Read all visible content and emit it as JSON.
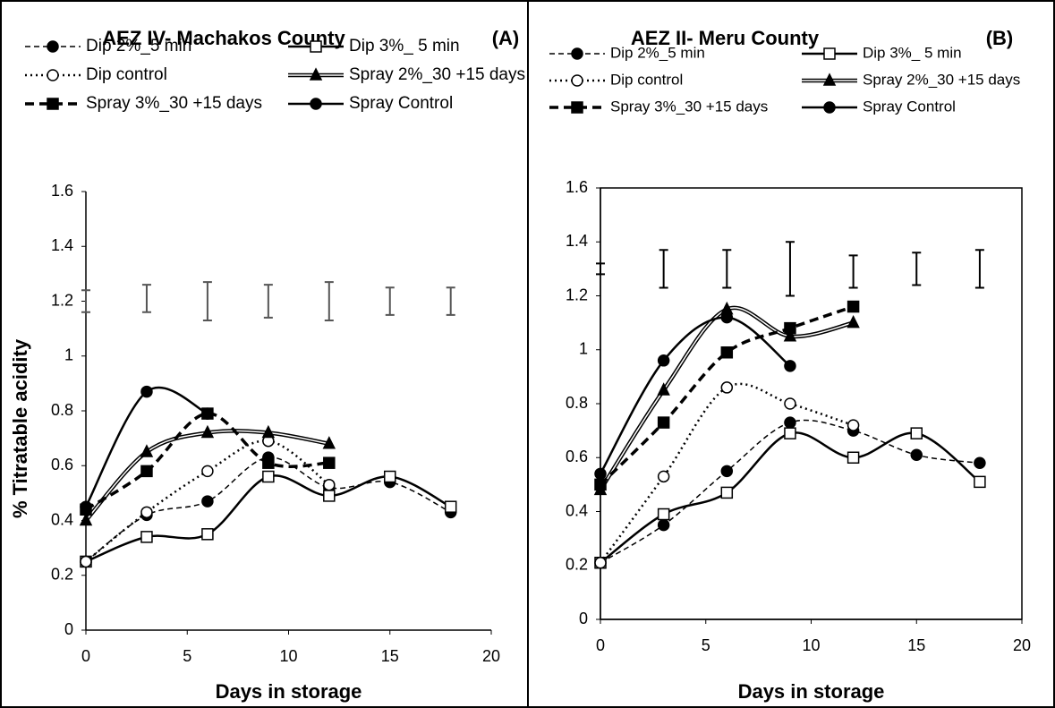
{
  "chart_data": [
    {
      "type": "line",
      "title": "AEZ IV- Machakos County",
      "panel_label": "(A)",
      "xlabel": "Days in storage",
      "ylabel": "% Titratable acidity",
      "xlim": [
        0,
        20
      ],
      "xticks": [
        0,
        5,
        10,
        15,
        20
      ],
      "ylim": [
        0,
        1.6
      ],
      "yticks": [
        0,
        0.2,
        0.4,
        0.6,
        0.8,
        1,
        1.2,
        1.4,
        1.6
      ],
      "plot_box": false,
      "x": [
        0,
        3,
        6,
        9,
        12,
        15,
        18
      ],
      "series": [
        {
          "name": "Dip 2%_5 min",
          "color": "#000000",
          "line_style": "dashed-double",
          "marker": "circle-filled",
          "values": [
            0.25,
            0.42,
            0.47,
            0.63,
            0.52,
            0.54,
            0.43
          ]
        },
        {
          "name": "Dip 3%_ 5 min",
          "color": "#000000",
          "line_style": "solid",
          "marker": "square-open",
          "values": [
            0.25,
            0.34,
            0.35,
            0.56,
            0.49,
            0.56,
            0.45
          ]
        },
        {
          "name": "Dip control",
          "color": "#000000",
          "line_style": "dotted",
          "marker": "circle-open",
          "values": [
            0.25,
            0.43,
            0.58,
            0.69,
            0.53,
            null,
            null
          ]
        },
        {
          "name": "Spray 2%_30 +15 days",
          "color": "#000000",
          "line_style": "double",
          "marker": "triangle-filled",
          "values": [
            0.4,
            0.65,
            0.72,
            0.72,
            0.68,
            null,
            null
          ]
        },
        {
          "name": "Spray 3%_30 +15 days",
          "color": "#000000",
          "line_style": "bold-dashed",
          "marker": "square-filled",
          "values": [
            0.44,
            0.58,
            0.79,
            0.61,
            0.61,
            null,
            null
          ]
        },
        {
          "name": "Spray Control",
          "color": "#000000",
          "line_style": "solid",
          "marker": "circle-filled",
          "values": [
            0.45,
            0.87,
            0.79,
            null,
            null,
            null,
            null
          ]
        }
      ],
      "error_bars": {
        "color": "#555555",
        "values": [
          1.2,
          1.21,
          1.2,
          1.2,
          1.2,
          1.2,
          1.2
        ],
        "errors": [
          0.04,
          0.05,
          0.07,
          0.06,
          0.07,
          0.05,
          0.05
        ]
      }
    },
    {
      "type": "line",
      "title": "AEZ II- Meru  County",
      "panel_label": "(B)",
      "xlabel": "Days in storage",
      "xlim": [
        0,
        20
      ],
      "xticks": [
        0,
        5,
        10,
        15,
        20
      ],
      "ylim": [
        0,
        1.6
      ],
      "yticks": [
        0,
        0.2,
        0.4,
        0.6,
        0.8,
        1,
        1.2,
        1.4,
        1.6
      ],
      "plot_box": true,
      "x": [
        0,
        3,
        6,
        9,
        12,
        15,
        18
      ],
      "series": [
        {
          "name": "Dip 2%_5 min",
          "color": "#000000",
          "line_style": "dashed-double",
          "marker": "circle-filled",
          "values": [
            0.21,
            0.35,
            0.55,
            0.73,
            0.7,
            0.61,
            0.58
          ]
        },
        {
          "name": "Dip 3%_ 5 min",
          "color": "#000000",
          "line_style": "solid",
          "marker": "square-open",
          "values": [
            0.21,
            0.39,
            0.47,
            0.69,
            0.6,
            0.69,
            0.51
          ]
        },
        {
          "name": "Dip control",
          "color": "#000000",
          "line_style": "dotted",
          "marker": "circle-open",
          "values": [
            0.21,
            0.53,
            0.86,
            0.8,
            0.72,
            null,
            null
          ]
        },
        {
          "name": "Spray 2%_30 +15 days",
          "color": "#000000",
          "line_style": "double",
          "marker": "triangle-filled",
          "values": [
            0.48,
            0.85,
            1.15,
            1.05,
            1.1,
            null,
            null
          ]
        },
        {
          "name": "Spray 3%_30 +15 days",
          "color": "#000000",
          "line_style": "bold-dashed",
          "marker": "square-filled",
          "values": [
            0.5,
            0.73,
            0.99,
            1.08,
            1.16,
            null,
            null
          ]
        },
        {
          "name": "Spray Control",
          "color": "#000000",
          "line_style": "solid",
          "marker": "circle-filled",
          "values": [
            0.54,
            0.96,
            1.12,
            0.94,
            null,
            null,
            null
          ]
        }
      ],
      "error_bars": {
        "color": "#000000",
        "values": [
          1.3,
          1.3,
          1.3,
          1.3,
          1.29,
          1.3,
          1.3
        ],
        "errors": [
          0.02,
          0.07,
          0.07,
          0.1,
          0.06,
          0.06,
          0.07
        ]
      }
    }
  ]
}
